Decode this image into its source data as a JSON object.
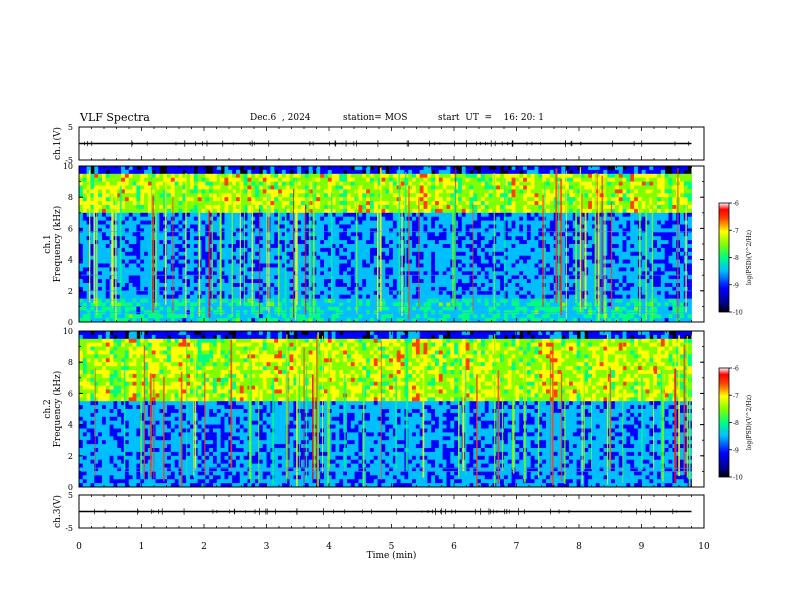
{
  "header": {
    "title": "VLF Spectra",
    "date": "Dec.6  , 2024",
    "station": "station= MOS",
    "start": "start  UT  =    16: 20: 1"
  },
  "chart_data": [
    {
      "type": "line",
      "name": "ch1-voltage",
      "ylabel": "ch.1(V)",
      "ylim": [
        -5,
        5
      ],
      "yticks": [
        "5",
        "-5"
      ],
      "x": [
        0,
        9.8
      ],
      "values": [
        0,
        0
      ],
      "xlim": [
        0,
        10
      ]
    },
    {
      "type": "heatmap",
      "name": "ch1-spectrogram",
      "ylabel": "ch.1\nFrequency (kHz)",
      "ylim": [
        0,
        10
      ],
      "yticks": [
        "0",
        "2",
        "4",
        "6",
        "8",
        "10"
      ],
      "xlim": [
        0,
        10
      ],
      "data_extent_min": 9.8,
      "colorbar": {
        "label": "log(PSD)(V^2/Hz)",
        "range": [
          -10,
          -6
        ],
        "ticks": [
          "-6",
          "-7",
          "-8",
          "-9",
          "-10"
        ]
      },
      "bands_khz": [
        7,
        9.5
      ]
    },
    {
      "type": "heatmap",
      "name": "ch2-spectrogram",
      "ylabel": "ch.2\nFrequency (kHz)",
      "ylim": [
        0,
        10
      ],
      "yticks": [
        "0",
        "2",
        "4",
        "6",
        "8",
        "10"
      ],
      "xlim": [
        0,
        10
      ],
      "data_extent_min": 9.8,
      "colorbar": {
        "label": "log(PSD)(V^2/Hz)",
        "range": [
          -10,
          -6
        ],
        "ticks": [
          "-6",
          "-7",
          "-8",
          "-9",
          "-10"
        ]
      },
      "bands_khz": [
        5.5,
        9.5
      ]
    },
    {
      "type": "line",
      "name": "ch3-voltage",
      "ylabel": "ch.3(V)",
      "ylim": [
        -5,
        5
      ],
      "yticks": [
        "5",
        "-5"
      ],
      "x": [
        0,
        9.8
      ],
      "values": [
        0,
        0
      ],
      "xlim": [
        0,
        10
      ]
    }
  ],
  "xaxis": {
    "label": "Time  (min)",
    "ticks": [
      "0",
      "1",
      "2",
      "3",
      "4",
      "5",
      "6",
      "7",
      "8",
      "9",
      "10"
    ]
  }
}
